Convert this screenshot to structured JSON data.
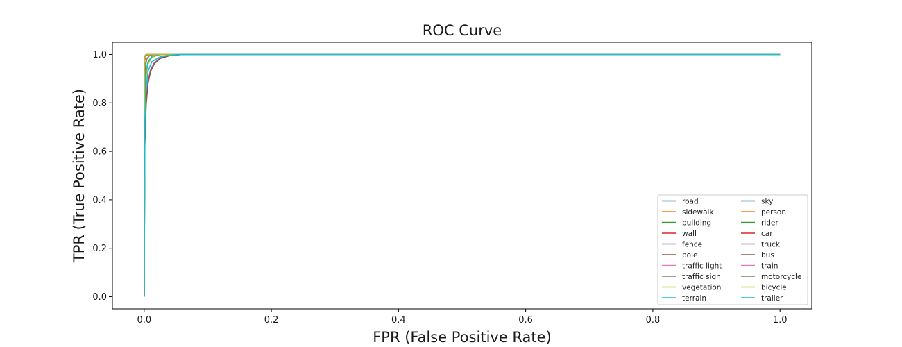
{
  "chart_data": {
    "type": "line",
    "title": "ROC Curve",
    "xlabel": "FPR (False Positive Rate)",
    "ylabel": "TPR (True Positive Rate)",
    "xlim": [
      -0.05,
      1.05
    ],
    "ylim": [
      -0.05,
      1.05
    ],
    "xticks": [
      0.0,
      0.2,
      0.4,
      0.6,
      0.8,
      1.0
    ],
    "xtick_labels": [
      "0.0",
      "0.2",
      "0.4",
      "0.6",
      "0.8",
      "1.0"
    ],
    "yticks": [
      0.0,
      0.2,
      0.4,
      0.6,
      0.8,
      1.0
    ],
    "ytick_labels": [
      "0.0",
      "0.2",
      "0.4",
      "0.6",
      "0.8",
      "1.0"
    ],
    "grid": false,
    "legend": {
      "placement": "lower right",
      "columns": 2
    },
    "series": [
      {
        "name": "road",
        "color": "#1f77b4",
        "x": [
          0,
          0.0005,
          0.001,
          0.002,
          0.004,
          0.008,
          1.0
        ],
        "y": [
          0,
          0.93,
          0.975,
          0.992,
          0.998,
          1.0,
          1.0
        ]
      },
      {
        "name": "sidewalk",
        "color": "#ff7f0e",
        "x": [
          0,
          0.0008,
          0.002,
          0.004,
          0.008,
          0.015,
          1.0
        ],
        "y": [
          0,
          0.88,
          0.95,
          0.98,
          0.994,
          1.0,
          1.0
        ]
      },
      {
        "name": "building",
        "color": "#2ca02c",
        "x": [
          0,
          0.001,
          0.003,
          0.006,
          0.012,
          0.025,
          1.0
        ],
        "y": [
          0,
          0.82,
          0.92,
          0.965,
          0.99,
          1.0,
          1.0
        ]
      },
      {
        "name": "wall",
        "color": "#d62728",
        "x": [
          0,
          0.001,
          0.003,
          0.006,
          0.01,
          0.016,
          0.025,
          0.04,
          0.06,
          1.0
        ],
        "y": [
          0,
          0.64,
          0.8,
          0.885,
          0.935,
          0.965,
          0.985,
          0.996,
          1.0,
          1.0
        ]
      },
      {
        "name": "fence",
        "color": "#9467bd",
        "x": [
          0,
          0.001,
          0.003,
          0.006,
          0.01,
          0.016,
          0.025,
          0.04,
          0.06,
          1.0
        ],
        "y": [
          0,
          0.66,
          0.81,
          0.89,
          0.937,
          0.966,
          0.985,
          0.996,
          1.0,
          1.0
        ]
      },
      {
        "name": "pole",
        "color": "#8c564b",
        "x": [
          0,
          0.001,
          0.003,
          0.006,
          0.01,
          0.016,
          0.025,
          0.04,
          0.06,
          1.0
        ],
        "y": [
          0,
          0.62,
          0.79,
          0.88,
          0.93,
          0.962,
          0.983,
          0.995,
          1.0,
          1.0
        ]
      },
      {
        "name": "traffic light",
        "color": "#e377c2",
        "x": [
          0,
          0.0005,
          0.001,
          0.002,
          0.004,
          0.008,
          1.0
        ],
        "y": [
          0,
          0.94,
          0.978,
          0.993,
          0.998,
          1.0,
          1.0
        ]
      },
      {
        "name": "traffic sign",
        "color": "#7f7f7f",
        "x": [
          0,
          0.001,
          0.002,
          0.004,
          0.008,
          0.015,
          1.0
        ],
        "y": [
          0,
          0.9,
          0.955,
          0.982,
          0.995,
          1.0,
          1.0
        ]
      },
      {
        "name": "vegetation",
        "color": "#bcbd22",
        "x": [
          0,
          0.001,
          0.003,
          0.006,
          0.012,
          0.025,
          1.0
        ],
        "y": [
          0,
          0.8,
          0.91,
          0.96,
          0.988,
          1.0,
          1.0
        ]
      },
      {
        "name": "terrain",
        "color": "#17becf",
        "x": [
          0,
          0.001,
          0.003,
          0.006,
          0.012,
          0.025,
          1.0
        ],
        "y": [
          0,
          0.84,
          0.93,
          0.97,
          0.992,
          1.0,
          1.0
        ]
      },
      {
        "name": "sky",
        "color": "#1f77b4",
        "x": [
          0,
          0.0005,
          0.001,
          0.002,
          0.004,
          1.0
        ],
        "y": [
          0,
          0.97,
          0.99,
          0.997,
          1.0,
          1.0
        ]
      },
      {
        "name": "person",
        "color": "#ff7f0e",
        "x": [
          0,
          0.0003,
          0.001,
          0.003,
          0.006,
          0.012,
          1.0
        ],
        "y": [
          0,
          0.98,
          0.99,
          0.995,
          0.998,
          1.0,
          1.0
        ]
      },
      {
        "name": "rider",
        "color": "#2ca02c",
        "x": [
          0,
          0.0005,
          0.001,
          0.002,
          0.004,
          0.008,
          1.0
        ],
        "y": [
          0,
          0.95,
          0.98,
          0.993,
          0.998,
          1.0,
          1.0
        ]
      },
      {
        "name": "car",
        "color": "#d62728",
        "x": [
          0,
          0.0005,
          0.001,
          0.002,
          0.004,
          1.0
        ],
        "y": [
          0,
          0.96,
          0.985,
          0.996,
          1.0,
          1.0
        ]
      },
      {
        "name": "truck",
        "color": "#9467bd",
        "x": [
          0,
          0.0005,
          0.001,
          0.002,
          0.004,
          1.0
        ],
        "y": [
          0,
          0.975,
          0.99,
          0.997,
          1.0,
          1.0
        ]
      },
      {
        "name": "bus",
        "color": "#8c564b",
        "x": [
          0,
          0.0005,
          0.001,
          0.002,
          0.004,
          1.0
        ],
        "y": [
          0,
          0.97,
          0.988,
          0.996,
          1.0,
          1.0
        ]
      },
      {
        "name": "train",
        "color": "#e377c2",
        "x": [
          0,
          0.0005,
          0.001,
          0.002,
          0.004,
          1.0
        ],
        "y": [
          0,
          0.98,
          0.993,
          0.998,
          1.0,
          1.0
        ]
      },
      {
        "name": "motorcycle",
        "color": "#7f7f7f",
        "x": [
          0,
          0.0005,
          0.001,
          0.002,
          0.004,
          1.0
        ],
        "y": [
          0,
          0.97,
          0.988,
          0.996,
          1.0,
          1.0
        ]
      },
      {
        "name": "bicycle",
        "color": "#bcbd22",
        "x": [
          0,
          0.0005,
          0.001,
          0.002,
          0.004,
          1.0
        ],
        "y": [
          0,
          0.96,
          0.985,
          0.995,
          1.0,
          1.0
        ]
      },
      {
        "name": "trailer",
        "color": "#17becf",
        "x": [
          0,
          0.001,
          0.003,
          0.006,
          0.012,
          0.025,
          0.04,
          0.06,
          1.0
        ],
        "y": [
          0,
          0.72,
          0.86,
          0.93,
          0.97,
          0.99,
          0.997,
          1.0,
          1.0
        ]
      }
    ]
  }
}
